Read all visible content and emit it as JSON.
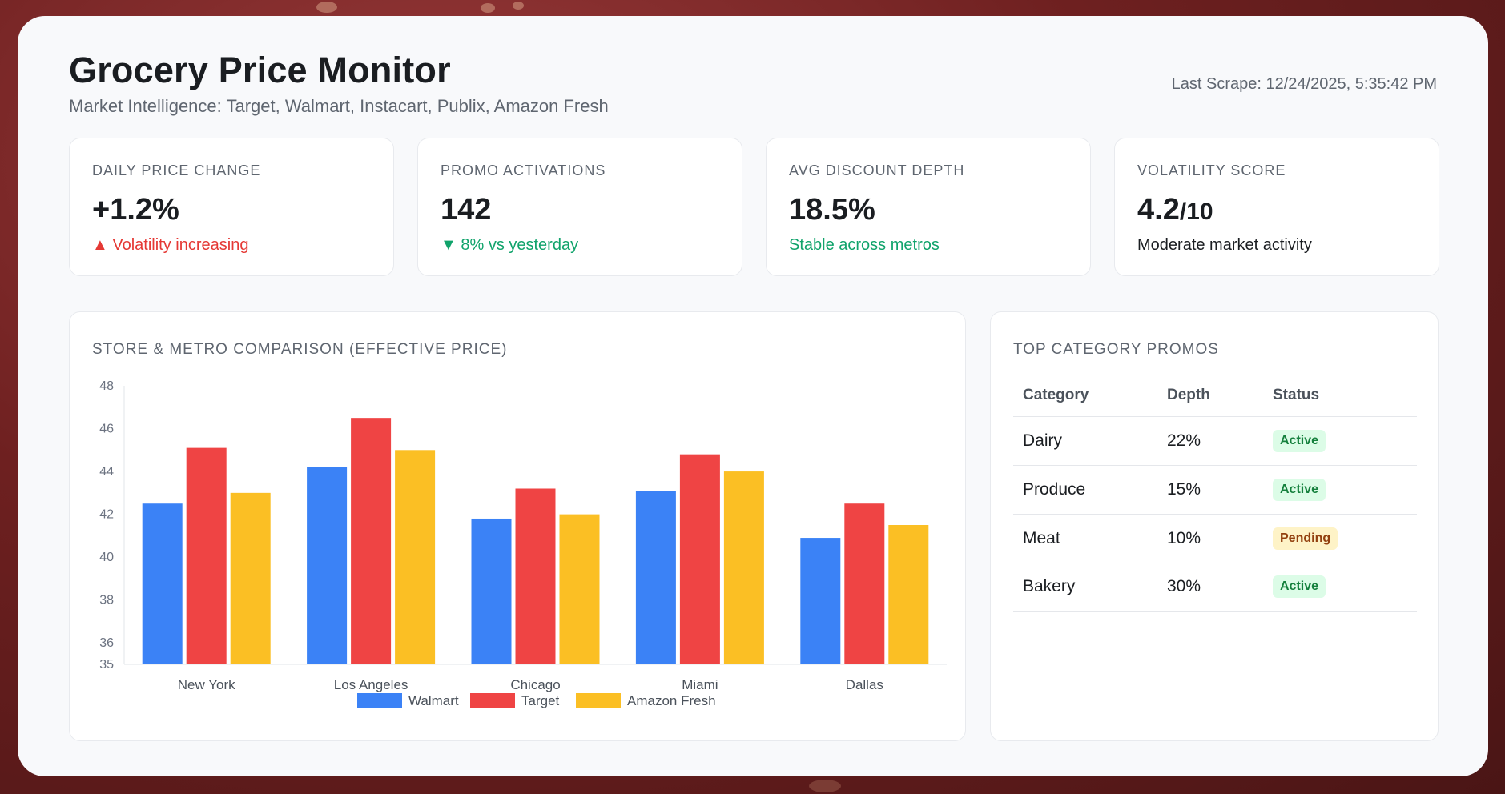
{
  "header": {
    "title": "Grocery Price Monitor",
    "subtitle": "Market Intelligence: Target, Walmart, Instacart, Publix, Amazon Fresh",
    "last_scrape": "Last Scrape: 12/24/2025, 5:35:42 PM"
  },
  "kpis": [
    {
      "label": "DAILY PRICE CHANGE",
      "value": "+1.2%",
      "suffix": "",
      "note": "▲ Volatility increasing",
      "tone": "red"
    },
    {
      "label": "PROMO ACTIVATIONS",
      "value": "142",
      "suffix": "",
      "note": "▼ 8% vs yesterday",
      "tone": "green"
    },
    {
      "label": "AVG DISCOUNT DEPTH",
      "value": "18.5%",
      "suffix": "",
      "note": "Stable across metros",
      "tone": "green"
    },
    {
      "label": "VOLATILITY SCORE",
      "value": "4.2",
      "suffix": "/10",
      "note": "Moderate market activity",
      "tone": "dark"
    }
  ],
  "chart_panel": {
    "title": "STORE & METRO COMPARISON (EFFECTIVE PRICE)"
  },
  "chart_data": {
    "type": "bar",
    "categories": [
      "New York",
      "Los Angeles",
      "Chicago",
      "Miami",
      "Dallas"
    ],
    "series": [
      {
        "name": "Walmart",
        "color": "#3b82f6",
        "values": [
          42.5,
          44.2,
          41.8,
          43.1,
          40.9
        ]
      },
      {
        "name": "Target",
        "color": "#ef4444",
        "values": [
          45.1,
          46.5,
          43.2,
          44.8,
          42.5
        ]
      },
      {
        "name": "Amazon Fresh",
        "color": "#fbbf24",
        "values": [
          43.0,
          45.0,
          42.0,
          44.0,
          41.5
        ]
      }
    ],
    "yticks": [
      35,
      36,
      38,
      40,
      42,
      44,
      46,
      48
    ],
    "ylim": [
      35,
      48
    ],
    "legend": "bottom",
    "grid": false
  },
  "promos": {
    "title": "TOP CATEGORY PROMOS",
    "columns": [
      "Category",
      "Depth",
      "Status"
    ],
    "rows": [
      {
        "category": "Dairy",
        "depth": "22%",
        "status": "Active"
      },
      {
        "category": "Produce",
        "depth": "15%",
        "status": "Active"
      },
      {
        "category": "Meat",
        "depth": "10%",
        "status": "Pending"
      },
      {
        "category": "Bakery",
        "depth": "30%",
        "status": "Active"
      }
    ]
  }
}
